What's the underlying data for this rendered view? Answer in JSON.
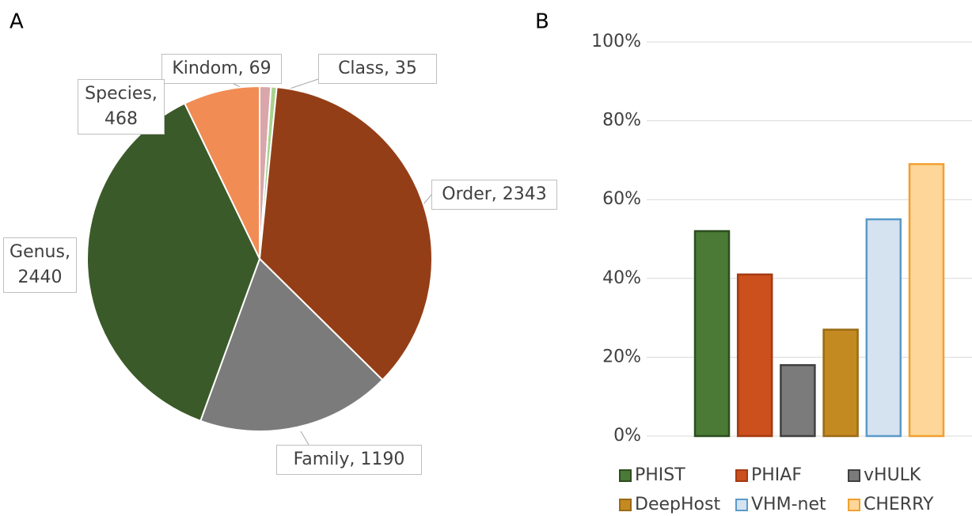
{
  "chart_data": [
    {
      "type": "pie",
      "panel_label": "A",
      "categories": [
        "Kindom",
        "Class",
        "Order",
        "Family",
        "Genus",
        "Species"
      ],
      "values": [
        69,
        35,
        2343,
        1190,
        2440,
        468
      ],
      "value_labels": [
        "Kindom, 69",
        "Class, 35",
        "Order, 2343",
        "Family, 1190",
        "Genus, 2440",
        "Species, 468"
      ],
      "colors": [
        "#d9a6ab",
        "#a9d18e",
        "#943e17",
        "#7b7b7b",
        "#3b5a29",
        "#f08c54"
      ]
    },
    {
      "type": "bar",
      "panel_label": "B",
      "categories": [
        "PHIST",
        "PHIAF",
        "vHULK",
        "DeepHost",
        "VHM-net",
        "CHERRY"
      ],
      "values": [
        52,
        41,
        18,
        27,
        55,
        69
      ],
      "colors": [
        "#4a7a35",
        "#cc4f1e",
        "#7b7b7b",
        "#c48a22",
        "#d5e2f0",
        "#ffd699"
      ],
      "edge_colors": [
        "#2d4d1f",
        "#a33a12",
        "#404040",
        "#9a6a14",
        "#5a9ac8",
        "#f0a030"
      ],
      "ylim": [
        0,
        100
      ],
      "yticks": [
        {
          "value": 0,
          "label": "0%"
        },
        {
          "value": 20,
          "label": "20%"
        },
        {
          "value": 40,
          "label": "40%"
        },
        {
          "value": 60,
          "label": "60%"
        },
        {
          "value": 80,
          "label": "80%"
        },
        {
          "value": 100,
          "label": "100%"
        }
      ],
      "grid": true,
      "legend": "bottom"
    }
  ]
}
